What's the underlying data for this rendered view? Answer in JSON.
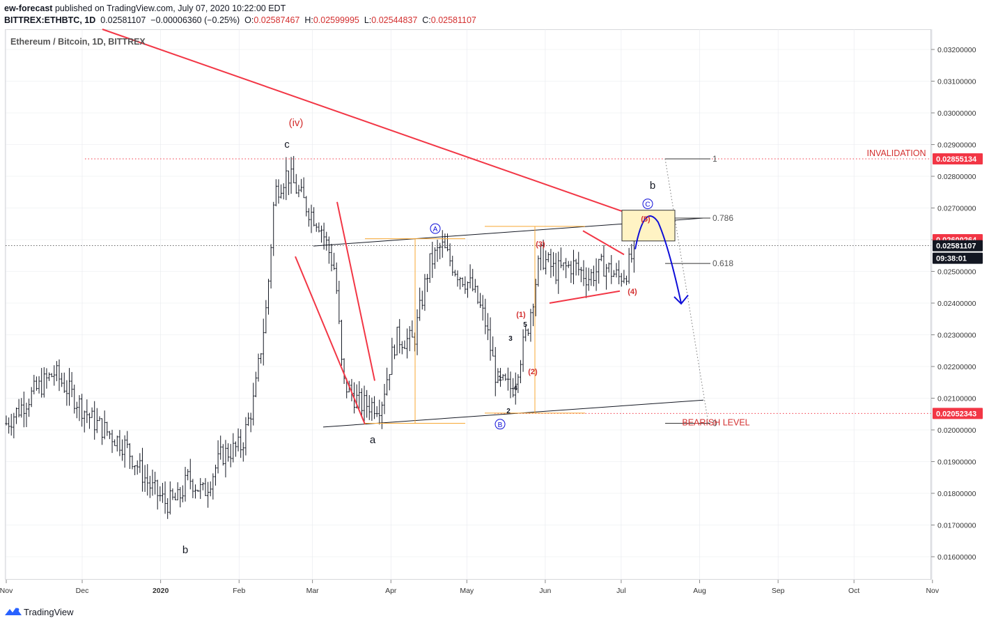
{
  "header": {
    "author": "ew-forecast",
    "published": "published on TradingView.com, July 07, 2020 10:22:00 EDT",
    "symbol": "BITTREX:ETHBTC, 1D",
    "last": "0.02581107",
    "change": "−0.00006360 (−0.25%)",
    "o_label": "O:",
    "o_value": "0.02587467",
    "h_label": "H:",
    "h_value": "0.02599995",
    "l_label": "L:",
    "l_value": "0.02544837",
    "c_label": "C:",
    "c_value": "0.02581107"
  },
  "chart_title": "Ethereum / Bitcoin, 1D, BITTREX",
  "footer": {
    "brand": "TradingView",
    "logo_icon": "tradingview-logo-icon"
  },
  "colors": {
    "candle": "#131722",
    "red": "#f23645",
    "orange": "#f7a733",
    "blue": "#0d0dd8",
    "box_fill": "#fff3c4",
    "grid": "#e7e9ee"
  },
  "chart_data": {
    "type": "ohlc",
    "instrument": "ETHBTC",
    "timeframe": "1D",
    "ylim": [
      0.0155,
      0.0327
    ],
    "y_ticks": [
      "0.03200000",
      "0.03100000",
      "0.03000000",
      "0.02900000",
      "0.02800000",
      "0.02700000",
      "0.02600000",
      "0.02500000",
      "0.02400000",
      "0.02300000",
      "0.02200000",
      "0.02100000",
      "0.02000000",
      "0.01900000",
      "0.01800000",
      "0.01700000",
      "0.01600000"
    ],
    "x_ticks": [
      "Nov",
      "Dec",
      "2020",
      "Feb",
      "Mar",
      "Apr",
      "May",
      "Jun",
      "Jul",
      "Aug",
      "Sep",
      "Oct",
      "Nov"
    ],
    "price_tags": [
      {
        "label": "0.02855134",
        "color": "#f23645"
      },
      {
        "label": "0.02600264",
        "color": "#f23645"
      },
      {
        "label": "0.02581107",
        "color": "#131722"
      },
      {
        "label": "09:38:01",
        "color": "#131722"
      },
      {
        "label": "0.02052343",
        "color": "#f23645"
      }
    ],
    "series_path": [
      [
        "2019-11-01",
        0.0202
      ],
      [
        "2019-11-12",
        0.0212
      ],
      [
        "2019-11-20",
        0.0218
      ],
      [
        "2019-12-05",
        0.0203
      ],
      [
        "2019-12-18",
        0.0195
      ],
      [
        "2019-12-28",
        0.0182
      ],
      [
        "2020-01-03",
        0.0177
      ],
      [
        "2020-01-08",
        0.0178
      ],
      [
        "2020-01-12",
        0.0185
      ],
      [
        "2020-01-18",
        0.018
      ],
      [
        "2020-01-25",
        0.0192
      ],
      [
        "2020-02-02",
        0.0195
      ],
      [
        "2020-02-07",
        0.021
      ],
      [
        "2020-02-12",
        0.024
      ],
      [
        "2020-02-15",
        0.0275
      ],
      [
        "2020-02-20",
        0.0281
      ],
      [
        "2020-02-28",
        0.027
      ],
      [
        "2020-03-04",
        0.0265
      ],
      [
        "2020-03-10",
        0.025
      ],
      [
        "2020-03-13",
        0.0215
      ],
      [
        "2020-03-20",
        0.0208
      ],
      [
        "2020-03-28",
        0.0208
      ],
      [
        "2020-04-03",
        0.0229
      ],
      [
        "2020-04-10",
        0.0228
      ],
      [
        "2020-04-16",
        0.0252
      ],
      [
        "2020-04-21",
        0.0258
      ],
      [
        "2020-04-27",
        0.025
      ],
      [
        "2020-05-03",
        0.0245
      ],
      [
        "2020-05-08",
        0.0235
      ],
      [
        "2020-05-13",
        0.0215
      ],
      [
        "2020-05-19",
        0.0213
      ],
      [
        "2020-05-25",
        0.0232
      ],
      [
        "2020-05-30",
        0.0255
      ],
      [
        "2020-06-05",
        0.025
      ],
      [
        "2020-06-12",
        0.0252
      ],
      [
        "2020-06-18",
        0.0248
      ],
      [
        "2020-06-24",
        0.0252
      ],
      [
        "2020-06-30",
        0.0248
      ],
      [
        "2020-07-03",
        0.025
      ],
      [
        "2020-07-07",
        0.0258
      ]
    ],
    "fib_levels": [
      {
        "label": "1",
        "value": 0.02855
      },
      {
        "label": "0.786",
        "value": 0.02668
      },
      {
        "label": "0.618",
        "value": 0.02525
      },
      {
        "label": "0",
        "value": 0.02021
      }
    ],
    "annotations": {
      "invalidation": "INVALIDATION",
      "bearish_level": "BEARISH LEVEL",
      "wave_iv": "(iv)",
      "wave_c": "c",
      "wave_b_low": "b",
      "wave_a": "a",
      "wave_b_high": "b",
      "circle_A": "A",
      "circle_B": "B",
      "circle_C": "C",
      "sub_1": "(1)",
      "sub_2": "(2)",
      "sub_3": "(3)",
      "sub_4": "(4)",
      "sub_5": "(5)",
      "minor_1": "1",
      "minor_2": "2",
      "minor_3": "3",
      "minor_4": "4",
      "minor_5": "5"
    }
  }
}
